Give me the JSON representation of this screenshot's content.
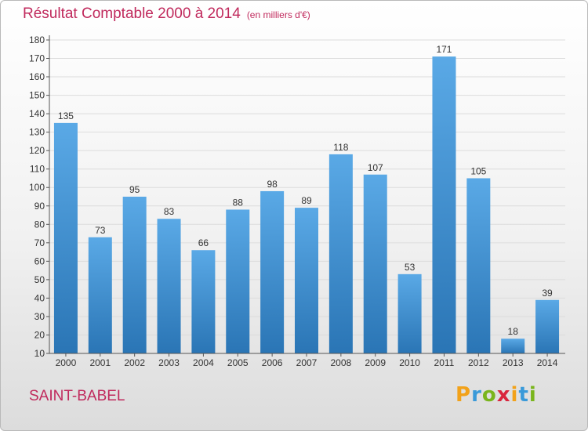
{
  "title": "Résultat Comptable 2000 à 2014",
  "unit_note": "(en milliers d'€)",
  "commune": "SAINT-BABEL",
  "logo": {
    "letters": [
      "P",
      "r",
      "o",
      "x",
      "i",
      "t",
      "i"
    ],
    "colors": [
      "#f2a21a",
      "#3a9ad9",
      "#7ab51d",
      "#d9263d",
      "#f2a21a",
      "#3a9ad9",
      "#7ab51d"
    ]
  },
  "colors": {
    "bar_top": "#5aa9e6",
    "bar_bottom": "#2a75b5",
    "title": "#c0295c",
    "grid": "#dcdcdc"
  },
  "chart_data": {
    "type": "bar",
    "title": "Résultat Comptable 2000 à 2014",
    "subtitle": "(en milliers d'€)",
    "categories": [
      "2000",
      "2001",
      "2002",
      "2003",
      "2004",
      "2005",
      "2006",
      "2007",
      "2008",
      "2009",
      "2010",
      "2011",
      "2012",
      "2013",
      "2014"
    ],
    "values": [
      135,
      73,
      95,
      83,
      66,
      88,
      98,
      89,
      118,
      107,
      53,
      171,
      105,
      18,
      39
    ],
    "yticks": [
      10,
      20,
      30,
      40,
      50,
      60,
      70,
      80,
      90,
      100,
      110,
      120,
      130,
      140,
      150,
      160,
      170,
      180
    ],
    "ylim": [
      10,
      180
    ],
    "grid": true
  }
}
